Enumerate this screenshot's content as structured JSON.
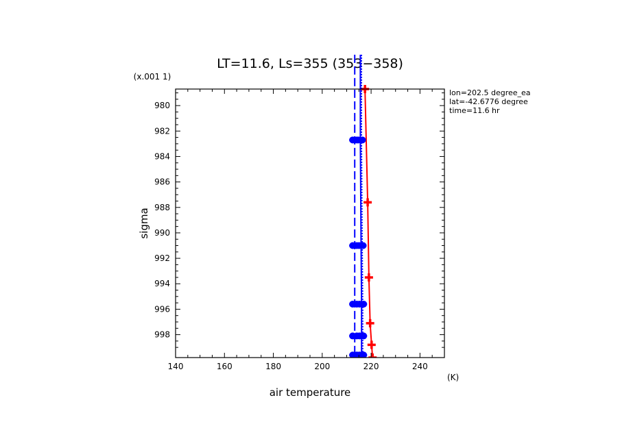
{
  "chart_data": {
    "type": "line",
    "title": "LT=11.6, Ls=355 (353−358)",
    "xlabel": "air temperature",
    "xunit": "(K)",
    "ylabel": "sigma",
    "yscale_note": "(x.001 1)",
    "xlim": [
      140,
      250
    ],
    "ylim_scaled": [
      978.7,
      999.8
    ],
    "xticks": [
      140,
      160,
      180,
      200,
      220,
      240
    ],
    "yticks": [
      980,
      982,
      984,
      986,
      988,
      990,
      992,
      994,
      996,
      998
    ],
    "info": [
      "lon=202.5 degree_ea",
      "lat=-42.6776 degree",
      "time=11.6 hr"
    ],
    "series": [
      {
        "color": "#ff0000",
        "style": "solid",
        "marker": "plus",
        "x": [
          217.5,
          218.6,
          219.1,
          219.6,
          220.2,
          220.6
        ],
        "y": [
          978.7,
          987.6,
          993.5,
          997.1,
          998.8,
          999.8
        ]
      },
      {
        "color": "#0000ff",
        "style": "solid",
        "marker": "dot",
        "x": [
          215.6,
          215.6,
          215.9,
          216.1,
          216.1,
          216.1
        ],
        "y": [
          976.0,
          982.7,
          991.0,
          995.6,
          998.1,
          999.6
        ]
      },
      {
        "color": "#0000ff",
        "style": "dotted",
        "marker": "none",
        "x": [
          216.1,
          216.1,
          216.4,
          216.6,
          216.6,
          216.6
        ],
        "y": [
          976.0,
          982.7,
          991.0,
          995.6,
          998.1,
          999.6
        ]
      },
      {
        "color": "#0000ff",
        "style": "dashed",
        "marker": "dot",
        "x": [
          213.3,
          213.3,
          213.3,
          213.3,
          213.3,
          213.3
        ],
        "y": [
          976.0,
          982.7,
          991.0,
          995.6,
          998.1,
          999.6
        ]
      }
    ]
  }
}
